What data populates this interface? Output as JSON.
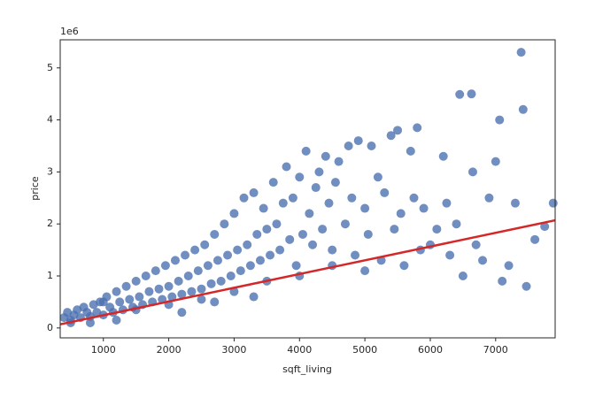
{
  "chart_data": {
    "type": "scatter",
    "x_label": "sqft_living",
    "y_label": "price",
    "y_offset_label": "1e6",
    "color": "#4c72b0",
    "xlim": [
      340,
      7910
    ],
    "ylim": [
      -0.19,
      5.54
    ],
    "xticks": [
      1000,
      2000,
      3000,
      4000,
      5000,
      6000,
      7000
    ],
    "yticks": [
      0,
      1,
      2,
      3,
      4,
      5
    ],
    "x": [
      400,
      450,
      500,
      550,
      600,
      650,
      700,
      750,
      800,
      850,
      900,
      950,
      1000,
      1050,
      1100,
      1150,
      1200,
      1250,
      1300,
      1350,
      1400,
      1450,
      1500,
      1550,
      1600,
      1650,
      1700,
      1750,
      1800,
      1850,
      1900,
      1950,
      2000,
      2050,
      2100,
      2150,
      2200,
      2250,
      2300,
      2350,
      2400,
      2450,
      2500,
      2550,
      2600,
      2650,
      2700,
      2750,
      2800,
      2850,
      2900,
      2950,
      3000,
      3050,
      3100,
      3150,
      3200,
      3250,
      3300,
      3350,
      3400,
      3450,
      3500,
      3550,
      3600,
      3650,
      3700,
      3750,
      3800,
      3850,
      3900,
      3950,
      4000,
      4050,
      4100,
      4150,
      4200,
      4250,
      4300,
      4350,
      4400,
      4450,
      4500,
      4550,
      4600,
      4700,
      4750,
      4800,
      4850,
      4900,
      5000,
      5050,
      5100,
      5200,
      5250,
      5300,
      5400,
      5450,
      5500,
      5550,
      5600,
      5700,
      5750,
      5800,
      5850,
      5900,
      6000,
      6100,
      6200,
      6250,
      6300,
      6400,
      6450,
      6500,
      6630,
      6650,
      6700,
      6800,
      6900,
      7000,
      7060,
      7100,
      7200,
      7300,
      7390,
      7420,
      7470,
      7600,
      7750,
      7880,
      500,
      1000,
      1500,
      2000,
      2500,
      3000,
      3500,
      4000,
      2200,
      1200,
      800,
      3300,
      4500,
      5000,
      2700
    ],
    "y": [
      0.2,
      0.3,
      0.15,
      0.25,
      0.35,
      0.2,
      0.4,
      0.3,
      0.22,
      0.45,
      0.3,
      0.5,
      0.25,
      0.6,
      0.4,
      0.3,
      0.7,
      0.5,
      0.35,
      0.8,
      0.55,
      0.4,
      0.9,
      0.6,
      0.45,
      1.0,
      0.7,
      0.5,
      1.1,
      0.75,
      0.55,
      1.2,
      0.8,
      0.6,
      1.3,
      0.9,
      0.65,
      1.4,
      1.0,
      0.7,
      1.5,
      1.1,
      0.75,
      1.6,
      1.2,
      0.85,
      1.8,
      1.3,
      0.9,
      2.0,
      1.4,
      1.0,
      2.2,
      1.5,
      1.1,
      2.5,
      1.6,
      1.2,
      2.6,
      1.8,
      1.3,
      2.3,
      1.9,
      1.4,
      2.8,
      2.0,
      1.5,
      2.4,
      3.1,
      1.7,
      2.5,
      1.2,
      2.9,
      1.8,
      3.4,
      2.2,
      1.6,
      2.7,
      3.0,
      1.9,
      3.3,
      2.4,
      1.5,
      2.8,
      3.2,
      2.0,
      3.5,
      2.5,
      1.4,
      3.6,
      2.3,
      1.8,
      3.5,
      2.9,
      1.3,
      2.6,
      3.7,
      1.9,
      3.8,
      2.2,
      1.2,
      3.4,
      2.5,
      3.85,
      1.5,
      2.3,
      1.6,
      1.9,
      3.3,
      2.4,
      1.4,
      2.0,
      4.49,
      1.0,
      4.5,
      3.0,
      1.6,
      1.3,
      2.5,
      3.2,
      4.0,
      0.9,
      1.2,
      2.4,
      5.3,
      4.2,
      0.8,
      1.7,
      1.95,
      2.4,
      0.1,
      0.5,
      0.35,
      0.45,
      0.55,
      0.7,
      0.9,
      1.0,
      0.3,
      0.15,
      0.1,
      0.6,
      1.2,
      1.1,
      0.5
    ],
    "regression": {
      "color": "#d62728",
      "x": [
        340,
        7910
      ],
      "y": [
        0.07,
        2.07
      ]
    }
  }
}
